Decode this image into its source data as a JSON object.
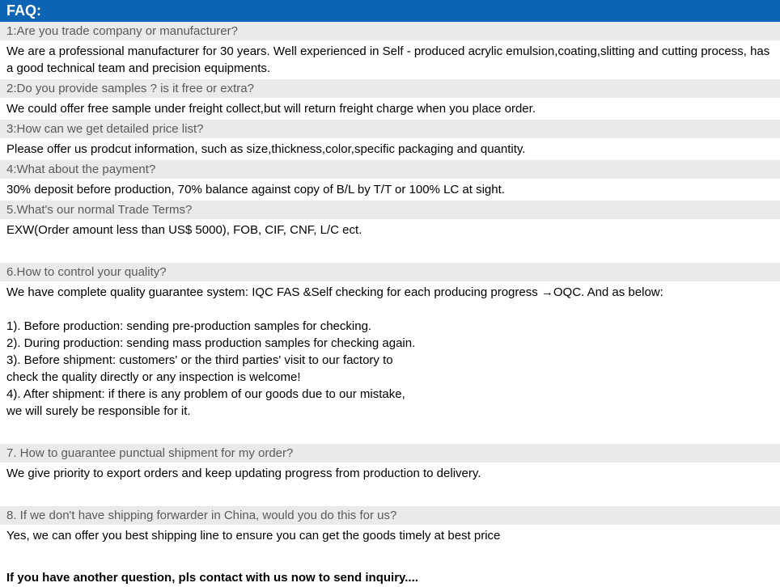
{
  "title": "FAQ:",
  "colors": {
    "titleBg": "#0d64b5",
    "titleText": "#ffffff",
    "questionBg": "#eaeaea",
    "questionText": "#5a5a5a",
    "answerBg": "#ffffff",
    "answerText": "#000000"
  },
  "items": [
    {
      "q": "1:Are you trade company or manufacturer?",
      "a": "We are a professional manufacturer for 30 years. Well experienced in Self - produced acrylic emulsion,coating,slitting and cutting process, has a good technical team and precision equipments."
    },
    {
      "q": "2:Do you provide samples ? is it free or extra?",
      "a": "We could offer free sample under freight collect,but will return freight charge when you place order."
    },
    {
      "q": "3:How can we get detailed price list?",
      "a": "Please offer us prodcut information, such as size,thickness,color,specific packaging and quantity."
    },
    {
      "q": "4:What about the payment?",
      "a": "30% deposit before production, 70% balance against copy of B/L by T/T or 100% LC at sight."
    },
    {
      "q": "5.What's our normal Trade Terms?",
      "a": "EXW(Order amount less than US$ 5000), FOB, CIF, CNF, L/C ect."
    },
    {
      "q": "6.How to control your quality?",
      "a": "We have complete quality guarantee system: IQC FAS &Self checking for each producing progress →OQC. And as below:\n\n1). Before production: sending pre-production samples for checking.\n2). During production: sending mass production samples for checking again.\n3). Before shipment: customers' or the third parties' visit to our factory to\ncheck the quality directly or any inspection is welcome!\n4). After shipment: if there is any problem of our goods due to our mistake,\nwe will surely be responsible for it."
    },
    {
      "q": "7. How to guarantee punctual shipment for my order?",
      "a": "We give priority to export orders and  keep updating progress from production to delivery."
    },
    {
      "q": "8. If we don't have shipping forwarder in China, would you do this for us?",
      "a": "Yes, we can offer you best shipping line to ensure you can get the goods timely at best price"
    }
  ],
  "closing": "If you have another question, pls contact with us now to send inquiry...."
}
